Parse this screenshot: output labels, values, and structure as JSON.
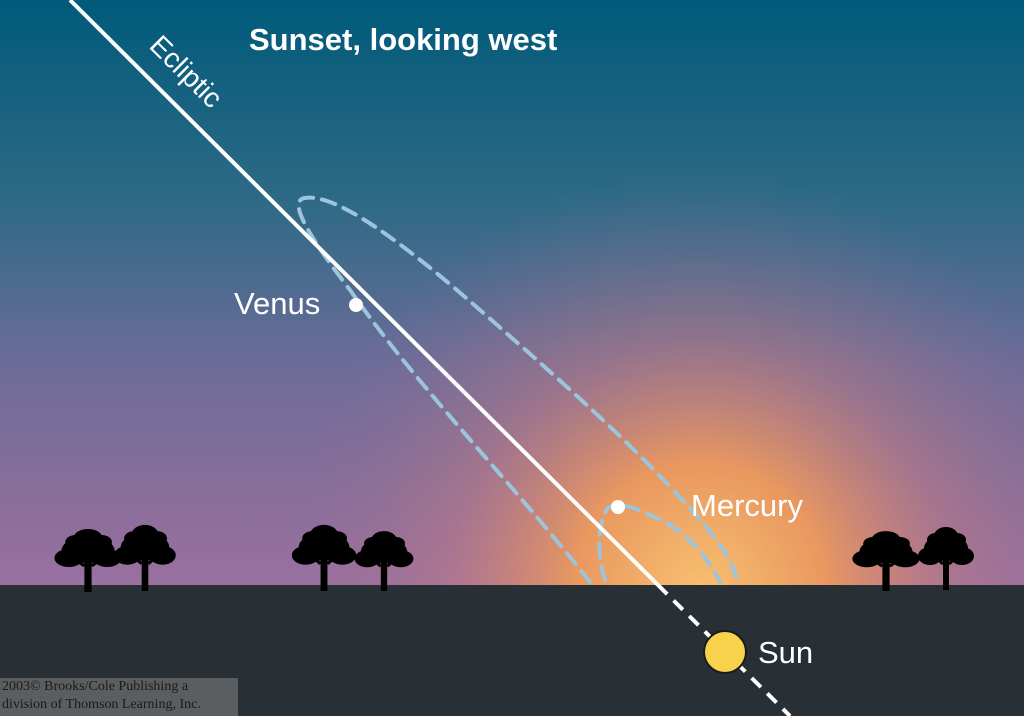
{
  "title": "Sunset, looking west",
  "ecliptic_label": "Ecliptic",
  "labels": {
    "venus": "Venus",
    "mercury": "Mercury",
    "sun": "Sun"
  },
  "credit": {
    "line1": "2003© Brooks/Cole Publishing a",
    "line2": "division of Thomson Learning, Inc."
  },
  "colors": {
    "sky_top": "#005a7a",
    "sky_mid": "#7a6e9a",
    "glow": "#f0a860",
    "ground": "#283036",
    "orbit_dash": "#9cc4dc",
    "sun": "#f7d24a",
    "ecliptic": "#ffffff"
  }
}
